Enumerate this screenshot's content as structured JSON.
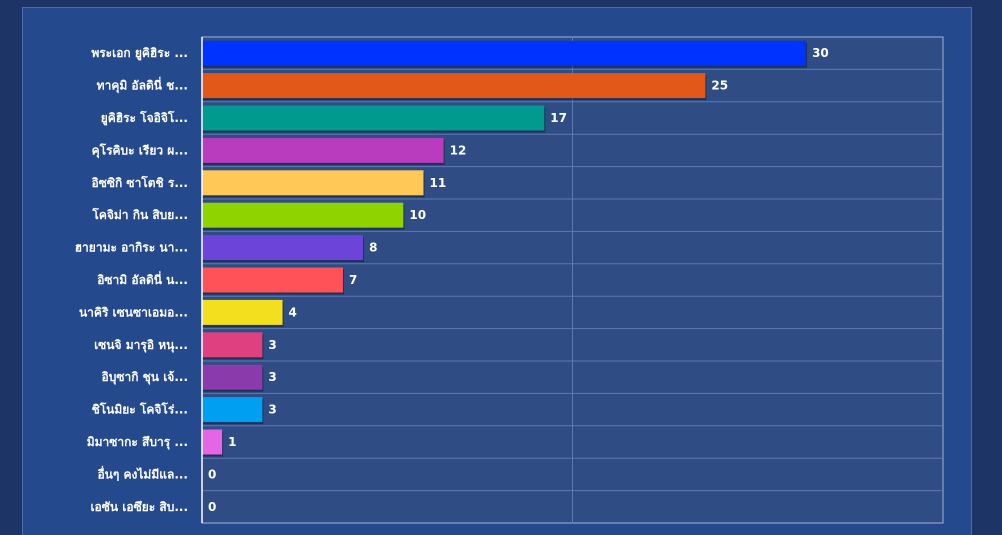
{
  "chart_data": {
    "type": "bar",
    "orientation": "horizontal",
    "title": "",
    "xlabel": "",
    "ylabel": "",
    "xlim": [
      0,
      30
    ],
    "grid": true,
    "legend": "none",
    "categories": [
      "พระเอก ยูคิฮิระ ...",
      "ทาคุมิ อัลดินี่ ช...",
      "ยูคิฮิระ โจอิจิโ...",
      "คุโรคิบะ เรียว ผ...",
      "อิซซิกิ ซาโตชิ ร...",
      "โคจิม่า กิน สิบย...",
      "ฮายามะ อากิระ นา...",
      "อิซามิ อัลดินี่ น...",
      "นาคิริ เซนซาเอมอ...",
      "เซนจิ มารุอิ หนุ...",
      "อิบุซากิ ชุน เจ้...",
      "ชิโนมิยะ โคจิโร่...",
      "มิมาซากะ สึบารุ ...",
      "อื่นๆ คงไม่มีแล...",
      "เอซัน เอซึยะ สิบ..."
    ],
    "values": [
      30,
      25,
      17,
      12,
      11,
      10,
      8,
      7,
      4,
      3,
      3,
      3,
      1,
      0,
      0
    ],
    "colors": [
      "#0033ff",
      "#e25819",
      "#009a8f",
      "#b93cbe",
      "#ffc857",
      "#8fd400",
      "#6d44d9",
      "#ff5258",
      "#f3df1e",
      "#de4080",
      "#8b3aab",
      "#009ff2",
      "#e466e4",
      "#888888",
      "#888888"
    ]
  },
  "theme": {
    "page_background": "#1d3566",
    "panel_background": "#25498d",
    "plot_background": "#2f4c84",
    "gridline_color": "#5d7ab3",
    "text_color": "#ffffff"
  }
}
